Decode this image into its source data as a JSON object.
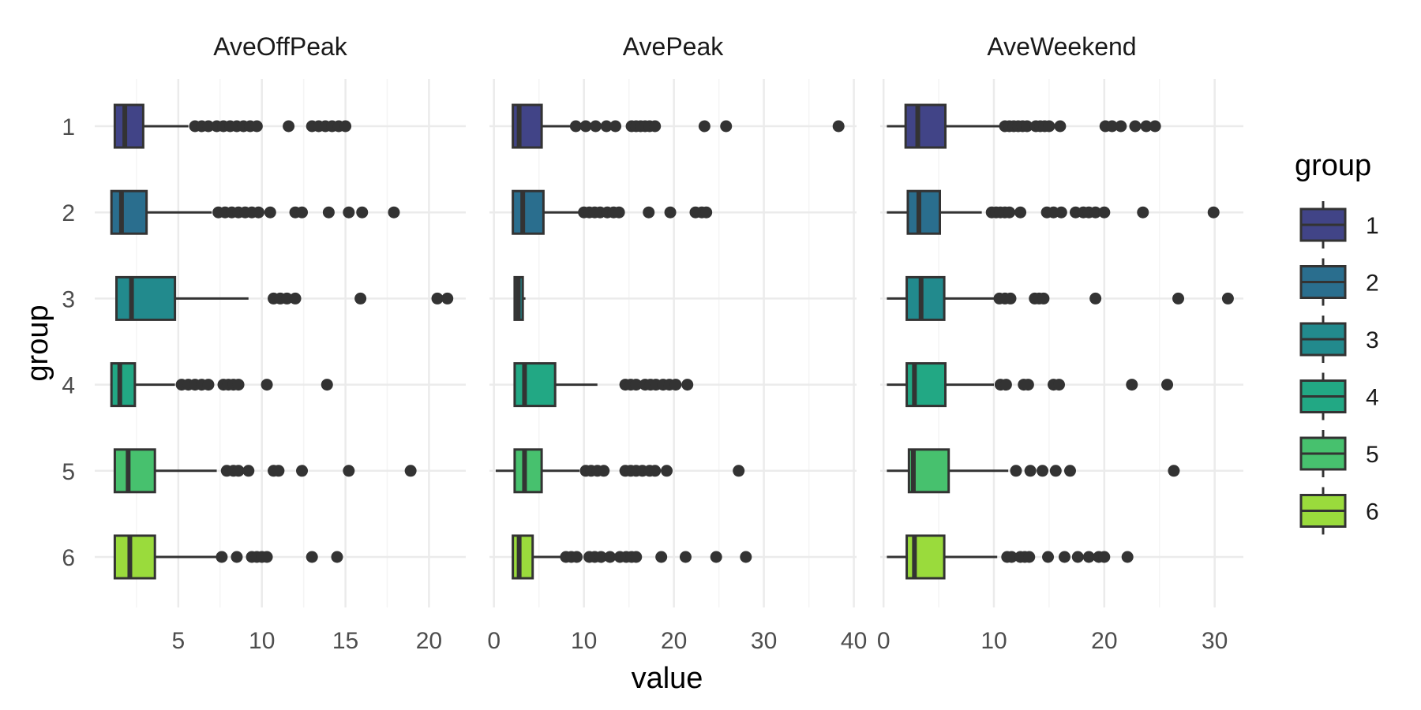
{
  "chart_data": {
    "type": "boxplot",
    "orientation": "horizontal",
    "xlabel": "value",
    "ylabel": "group",
    "groups": [
      "1",
      "2",
      "3",
      "4",
      "5",
      "6"
    ],
    "legend": {
      "title": "group",
      "placement": "right",
      "entries": [
        {
          "label": "1",
          "color": "#414487"
        },
        {
          "label": "2",
          "color": "#2A6E8E"
        },
        {
          "label": "3",
          "color": "#228A8D"
        },
        {
          "label": "4",
          "color": "#22A884"
        },
        {
          "label": "5",
          "color": "#47C16E"
        },
        {
          "label": "6",
          "color": "#9ADB3C"
        }
      ]
    },
    "grid": true,
    "facets": [
      {
        "title": "AveOffPeak",
        "xlim": [
          0,
          22.2
        ],
        "xticks": [
          5,
          10,
          15,
          20
        ],
        "xtick_labels": [
          "5",
          "10",
          "15",
          "20"
        ],
        "boxes": [
          {
            "group": "1",
            "min": 1.2,
            "q1": 1.2,
            "median": 1.8,
            "q3": 2.9,
            "max": 5.6,
            "outliers": [
              6.0,
              6.4,
              6.8,
              7.3,
              7.7,
              8.1,
              8.5,
              8.9,
              9.3,
              9.7,
              11.6,
              13.0,
              13.4,
              13.8,
              14.2,
              14.6,
              15.0
            ]
          },
          {
            "group": "2",
            "min": 1.0,
            "q1": 1.0,
            "median": 1.6,
            "q3": 3.1,
            "max": 7.0,
            "outliers": [
              7.4,
              7.8,
              8.2,
              8.6,
              9.0,
              9.4,
              9.8,
              10.5,
              12.0,
              12.4,
              14.0,
              15.2,
              16.0,
              17.9
            ]
          },
          {
            "group": "3",
            "min": 1.3,
            "q1": 1.3,
            "median": 2.2,
            "q3": 4.8,
            "max": 9.2,
            "outliers": [
              10.7,
              11.1,
              11.5,
              12.0,
              15.9,
              20.5,
              21.1
            ]
          },
          {
            "group": "4",
            "min": 1.0,
            "q1": 1.0,
            "median": 1.5,
            "q3": 2.4,
            "max": 4.8,
            "outliers": [
              5.2,
              5.6,
              6.0,
              6.4,
              6.8,
              7.7,
              8.0,
              8.3,
              8.6,
              10.3,
              13.9
            ]
          },
          {
            "group": "5",
            "min": 1.2,
            "q1": 1.2,
            "median": 2.0,
            "q3": 3.6,
            "max": 7.3,
            "outliers": [
              7.9,
              8.3,
              8.6,
              9.2,
              10.7,
              11.0,
              12.4,
              15.2,
              18.9
            ]
          },
          {
            "group": "6",
            "min": 1.2,
            "q1": 1.2,
            "median": 2.1,
            "q3": 3.6,
            "max": 7.3,
            "outliers": [
              7.6,
              8.5,
              9.4,
              9.7,
              10.0,
              10.3,
              13.0,
              14.5
            ]
          }
        ]
      },
      {
        "title": "AvePeak",
        "xlim": [
          -0.5,
          40.3
        ],
        "xticks": [
          0,
          10,
          20,
          30,
          40
        ],
        "xtick_labels": [
          "0",
          "10",
          "20",
          "30",
          "40"
        ],
        "boxes": [
          {
            "group": "1",
            "min": 2.1,
            "q1": 2.1,
            "median": 2.8,
            "q3": 5.3,
            "max": 8.5,
            "outliers": [
              9.1,
              10.2,
              11.3,
              12.5,
              13.5,
              15.3,
              15.8,
              16.3,
              16.8,
              17.3,
              17.9,
              23.4,
              25.8,
              38.3
            ]
          },
          {
            "group": "2",
            "min": 2.1,
            "q1": 2.1,
            "median": 3.2,
            "q3": 5.5,
            "max": 9.5,
            "outliers": [
              10.0,
              10.6,
              11.2,
              11.8,
              12.6,
              13.3,
              13.9,
              17.2,
              19.6,
              22.4,
              23.1,
              23.6
            ]
          },
          {
            "group": "3",
            "min": 2.3,
            "q1": 2.3,
            "median": 2.7,
            "q3": 3.2,
            "max": 3.5,
            "outliers": []
          },
          {
            "group": "4",
            "min": 2.3,
            "q1": 2.3,
            "median": 3.4,
            "q3": 6.8,
            "max": 11.5,
            "outliers": [
              14.6,
              15.2,
              15.8,
              16.8,
              17.4,
              18.0,
              18.8,
              19.5,
              20.2,
              21.5
            ]
          },
          {
            "group": "5",
            "min": 0.2,
            "q1": 2.3,
            "median": 3.4,
            "q3": 5.3,
            "max": 9.5,
            "outliers": [
              10.2,
              10.8,
              11.5,
              12.2,
              14.6,
              15.2,
              15.8,
              16.5,
              17.3,
              17.9,
              19.2,
              27.2
            ]
          },
          {
            "group": "6",
            "min": 2.1,
            "q1": 2.1,
            "median": 2.8,
            "q3": 4.3,
            "max": 7.5,
            "outliers": [
              8.0,
              8.6,
              9.2,
              10.6,
              11.2,
              11.9,
              12.9,
              14.0,
              14.7,
              15.3,
              15.8,
              18.6,
              21.3,
              24.7,
              28.0
            ]
          }
        ]
      },
      {
        "title": "AveWeekend",
        "xlim": [
          -0.3,
          32.6
        ],
        "xticks": [
          0,
          10,
          20,
          30
        ],
        "xtick_labels": [
          "0",
          "10",
          "20",
          "30"
        ],
        "boxes": [
          {
            "group": "1",
            "min": 0.3,
            "q1": 2.0,
            "median": 3.1,
            "q3": 5.6,
            "max": 10.7,
            "outliers": [
              11.0,
              11.4,
              11.8,
              12.2,
              12.6,
              13.0,
              13.8,
              14.2,
              14.6,
              15.0,
              16.0,
              20.1,
              20.7,
              21.5,
              22.8,
              23.8,
              24.6
            ]
          },
          {
            "group": "2",
            "min": 0.3,
            "q1": 2.2,
            "median": 3.2,
            "q3": 5.1,
            "max": 8.9,
            "outliers": [
              9.8,
              10.2,
              10.6,
              11.0,
              11.4,
              12.4,
              14.8,
              15.4,
              16.1,
              17.4,
              18.1,
              18.6,
              19.2,
              20.0,
              23.5,
              29.9
            ]
          },
          {
            "group": "3",
            "min": 0.3,
            "q1": 2.1,
            "median": 3.4,
            "q3": 5.5,
            "max": 10.0,
            "outliers": [
              10.5,
              11.0,
              11.5,
              13.7,
              14.1,
              14.5,
              19.2,
              26.7,
              31.2
            ]
          },
          {
            "group": "4",
            "min": 0.3,
            "q1": 2.1,
            "median": 2.8,
            "q3": 5.6,
            "max": 10.0,
            "outliers": [
              10.6,
              11.1,
              12.7,
              13.1,
              15.4,
              15.9,
              22.5,
              25.7
            ]
          },
          {
            "group": "5",
            "min": 0.3,
            "q1": 2.3,
            "median": 2.7,
            "q3": 5.9,
            "max": 11.3,
            "outliers": [
              12.0,
              13.3,
              14.4,
              15.6,
              16.9,
              26.3
            ]
          },
          {
            "group": "6",
            "min": 0.3,
            "q1": 2.1,
            "median": 2.8,
            "q3": 5.5,
            "max": 10.3,
            "outliers": [
              11.2,
              11.6,
              12.4,
              12.8,
              13.2,
              14.9,
              16.4,
              17.6,
              18.6,
              19.5,
              20.0,
              22.1
            ]
          }
        ]
      }
    ]
  }
}
